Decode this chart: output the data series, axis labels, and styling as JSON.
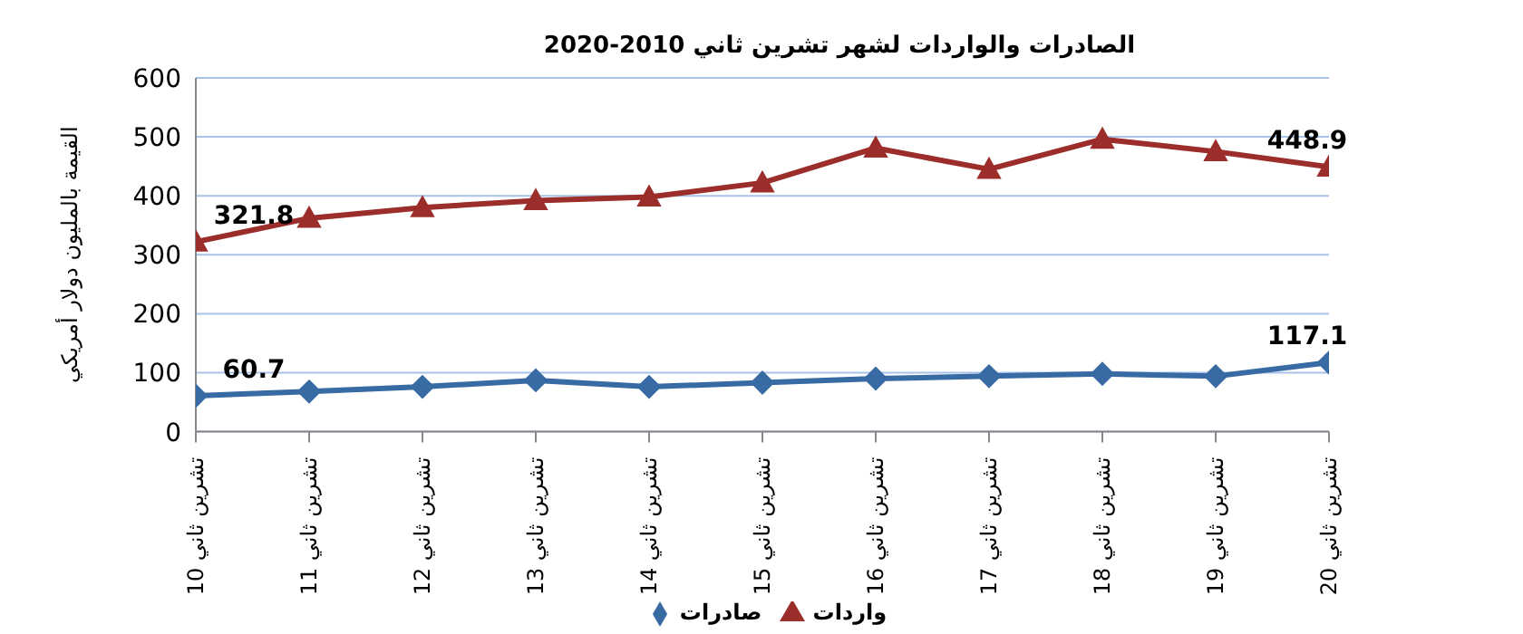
{
  "chart_data": {
    "type": "line",
    "title": "الصادرات والواردات لشهر تشرين ثاني 2010-2020",
    "ylabel": "القيمة بالمليون دولار أمريكي",
    "categories": [
      "تشرين ثاني 10",
      "تشرين ثاني 11",
      "تشرين ثاني 12",
      "تشرين ثاني 13",
      "تشرين ثاني 14",
      "تشرين ثاني 15",
      "تشرين ثاني 16",
      "تشرين ثاني 17",
      "تشرين ثاني 18",
      "تشرين ثاني 19",
      "تشرين ثاني 20"
    ],
    "series": [
      {
        "name": "واردات",
        "color": "#9b2d2a",
        "marker": "triangle",
        "values": [
          321.8,
          362,
          380,
          392,
          398,
          422,
          481,
          445,
          496,
          475,
          448.9
        ],
        "value_labels": [
          "321.8",
          null,
          null,
          null,
          null,
          null,
          null,
          null,
          null,
          null,
          "448.9"
        ]
      },
      {
        "name": "صادرات",
        "color": "#386aa3",
        "marker": "diamond",
        "values": [
          60.7,
          68,
          76,
          87,
          76,
          83,
          90,
          94,
          98,
          94,
          117.1
        ],
        "value_labels": [
          "60.7",
          null,
          null,
          null,
          null,
          null,
          null,
          null,
          null,
          null,
          "117.1"
        ]
      }
    ],
    "ylim": [
      0,
      600
    ],
    "yticks": [
      0,
      100,
      200,
      300,
      400,
      500,
      600
    ],
    "grid": "y",
    "legend": "bottom"
  }
}
